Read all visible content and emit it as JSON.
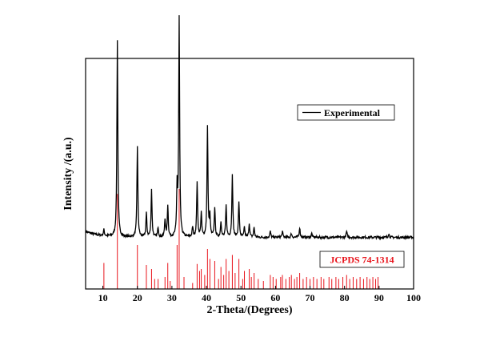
{
  "chart_data": {
    "type": "line",
    "xlabel": "2-Theta/(Degrees)",
    "ylabel": "Intensity /(a.u.)",
    "xlim": [
      5,
      100
    ],
    "xticks": [
      10,
      20,
      30,
      40,
      50,
      60,
      70,
      80,
      90,
      100
    ],
    "yticks_shown": false,
    "grid": false,
    "legend_position": "top-right",
    "colors": {
      "experimental": "#000000",
      "reference": "#e8141c"
    },
    "series": [
      {
        "name": "Experimental",
        "baseline": 0.26,
        "noise": 0.006,
        "peaks": [
          [
            10.3,
            0.03
          ],
          [
            14.2,
            0.99
          ],
          [
            20.0,
            0.46
          ],
          [
            22.6,
            0.12
          ],
          [
            24.1,
            0.24
          ],
          [
            26.0,
            0.05
          ],
          [
            28.0,
            0.09
          ],
          [
            28.8,
            0.16
          ],
          [
            31.5,
            0.24
          ],
          [
            32.1,
            1.1
          ],
          [
            36.0,
            0.05
          ],
          [
            37.3,
            0.28
          ],
          [
            38.5,
            0.12
          ],
          [
            40.3,
            0.56
          ],
          [
            41.0,
            0.1
          ],
          [
            42.4,
            0.15
          ],
          [
            44.2,
            0.08
          ],
          [
            45.7,
            0.16
          ],
          [
            47.5,
            0.32
          ],
          [
            49.4,
            0.18
          ],
          [
            51.0,
            0.05
          ],
          [
            52.4,
            0.07
          ],
          [
            53.8,
            0.05
          ],
          [
            58.5,
            0.03
          ],
          [
            62.0,
            0.03
          ],
          [
            64.6,
            0.02
          ],
          [
            67.0,
            0.05
          ],
          [
            70.5,
            0.02
          ],
          [
            80.6,
            0.03
          ],
          [
            92.8,
            0.02
          ]
        ]
      },
      {
        "name": "JCPDS 74-1314",
        "sticks": [
          [
            10.3,
            0.26
          ],
          [
            14.2,
            0.95
          ],
          [
            20.0,
            0.44
          ],
          [
            22.6,
            0.24
          ],
          [
            24.1,
            0.2
          ],
          [
            25.0,
            0.1
          ],
          [
            26.0,
            0.1
          ],
          [
            28.0,
            0.12
          ],
          [
            28.8,
            0.26
          ],
          [
            29.5,
            0.08
          ],
          [
            31.5,
            0.44
          ],
          [
            32.1,
            1.0
          ],
          [
            33.5,
            0.12
          ],
          [
            36.0,
            0.06
          ],
          [
            37.3,
            0.25
          ],
          [
            38.0,
            0.18
          ],
          [
            38.5,
            0.2
          ],
          [
            39.5,
            0.14
          ],
          [
            40.3,
            0.4
          ],
          [
            41.0,
            0.3
          ],
          [
            42.4,
            0.28
          ],
          [
            43.5,
            0.1
          ],
          [
            44.2,
            0.22
          ],
          [
            45.0,
            0.14
          ],
          [
            45.7,
            0.3
          ],
          [
            46.5,
            0.18
          ],
          [
            47.5,
            0.34
          ],
          [
            48.3,
            0.16
          ],
          [
            49.4,
            0.3
          ],
          [
            50.5,
            0.1
          ],
          [
            51.0,
            0.18
          ],
          [
            52.4,
            0.2
          ],
          [
            53.0,
            0.12
          ],
          [
            53.8,
            0.16
          ],
          [
            55.0,
            0.1
          ],
          [
            56.5,
            0.08
          ],
          [
            58.5,
            0.14
          ],
          [
            59.3,
            0.12
          ],
          [
            60.2,
            0.1
          ],
          [
            61.5,
            0.12
          ],
          [
            62.0,
            0.14
          ],
          [
            63.0,
            0.1
          ],
          [
            64.0,
            0.12
          ],
          [
            64.6,
            0.14
          ],
          [
            65.5,
            0.1
          ],
          [
            66.2,
            0.12
          ],
          [
            67.0,
            0.16
          ],
          [
            68.0,
            0.1
          ],
          [
            69.0,
            0.12
          ],
          [
            70.0,
            0.1
          ],
          [
            71.0,
            0.12
          ],
          [
            72.0,
            0.1
          ],
          [
            73.2,
            0.12
          ],
          [
            74.0,
            0.1
          ],
          [
            75.5,
            0.12
          ],
          [
            76.3,
            0.1
          ],
          [
            77.5,
            0.12
          ],
          [
            78.3,
            0.1
          ],
          [
            79.5,
            0.12
          ],
          [
            80.6,
            0.14
          ],
          [
            81.5,
            0.1
          ],
          [
            82.5,
            0.12
          ],
          [
            83.5,
            0.1
          ],
          [
            84.5,
            0.12
          ],
          [
            85.5,
            0.1
          ],
          [
            86.5,
            0.12
          ],
          [
            87.3,
            0.1
          ],
          [
            88.2,
            0.12
          ],
          [
            89.0,
            0.1
          ],
          [
            89.7,
            0.12
          ]
        ]
      }
    ]
  }
}
